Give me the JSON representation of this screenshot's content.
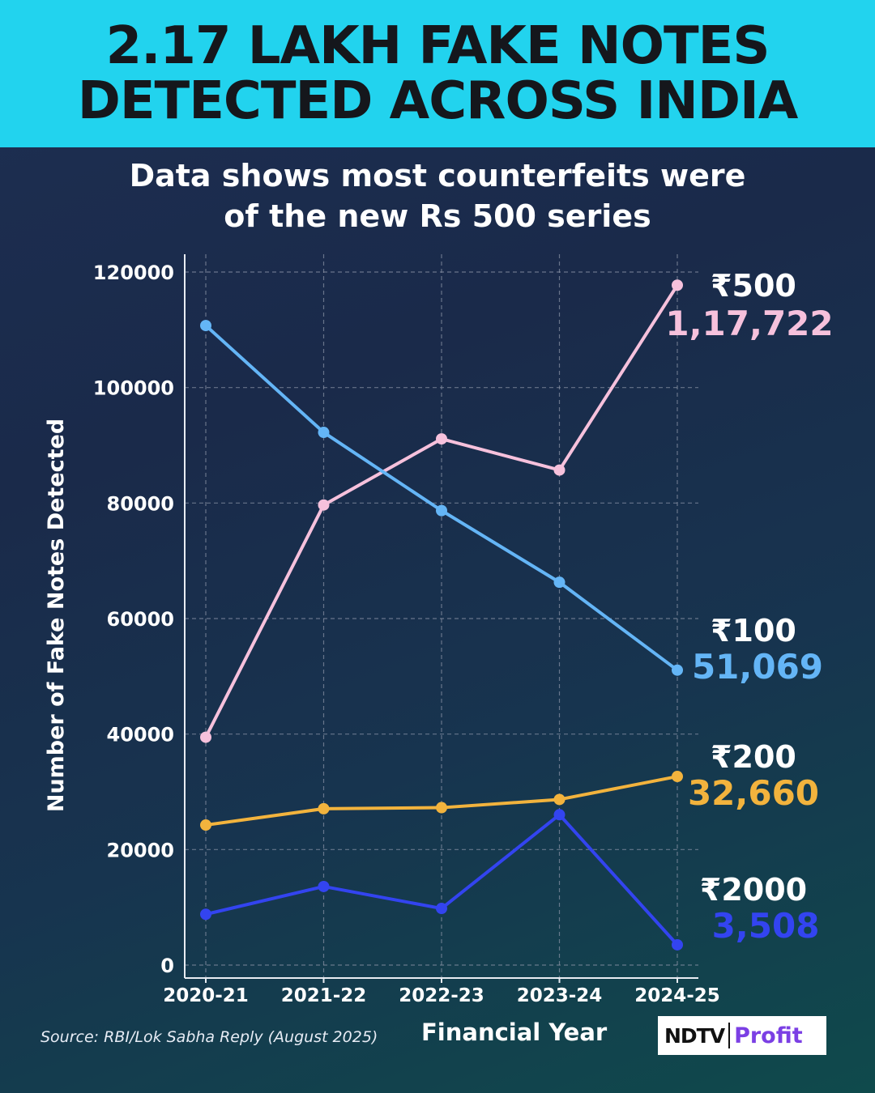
{
  "header": {
    "title_line1": "2.17 LAKH FAKE NOTES",
    "title_line2": "DETECTED ACROSS INDIA"
  },
  "subtitle": {
    "line1": "Data shows most counterfeits were",
    "line2": "of the new Rs 500 series"
  },
  "source": "Source: RBI/Lok Sabha Reply (August 2025)",
  "brand": {
    "ndtv": "NDTV",
    "profit": "Profit"
  },
  "chart_data": {
    "type": "line",
    "categories": [
      "2020-21",
      "2021-22",
      "2022-23",
      "2023-24",
      "2024-25"
    ],
    "xlabel": "Financial Year",
    "ylabel": "Number of Fake Notes Detected",
    "ylim": [
      0,
      120000
    ],
    "yticks": [
      0,
      20000,
      40000,
      60000,
      80000,
      100000,
      120000
    ],
    "grid": true,
    "series": [
      {
        "name": "₹500",
        "end_label": "1,17,722",
        "color": "#f6c1dc",
        "values": [
          39453,
          79669,
          91110,
          85711,
          117722
        ]
      },
      {
        "name": "₹100",
        "end_label": "51,069",
        "color": "#64b5f6",
        "values": [
          110736,
          92237,
          78699,
          66289,
          51069
        ]
      },
      {
        "name": "₹200",
        "end_label": "32,660",
        "color": "#f2b33d",
        "values": [
          24245,
          27074,
          27258,
          28672,
          32660
        ]
      },
      {
        "name": "₹2000",
        "end_label": "3,508",
        "color": "#3344f0",
        "values": [
          8798,
          13604,
          9806,
          26035,
          3508
        ]
      }
    ]
  }
}
